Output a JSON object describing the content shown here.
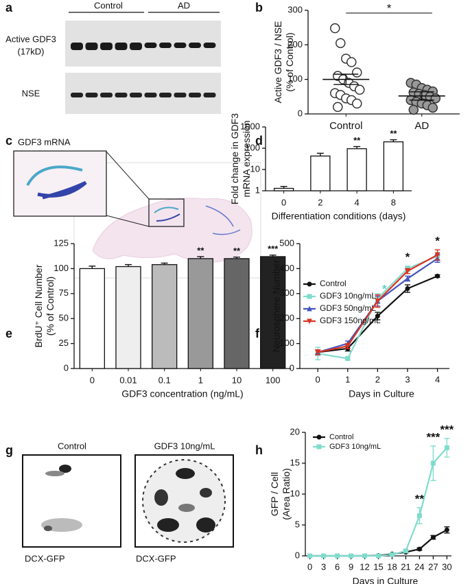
{
  "panel_a": {
    "label": "a",
    "groups": [
      "Control",
      "AD"
    ],
    "rows": [
      [
        "Active GDF3",
        "(17kD)"
      ],
      [
        "NSE"
      ]
    ]
  },
  "panel_c": {
    "label": "c",
    "title": "GDF3 mRNA"
  },
  "panel_g": {
    "label": "g",
    "conditions": [
      "Control",
      "GDF3 10ng/mL"
    ],
    "stain": [
      "DCX-GFP",
      "DCX-GFP"
    ]
  },
  "chart_data": [
    {
      "type": "dotplot",
      "label": "b",
      "categories": [
        "Control",
        "AD"
      ],
      "points": [
        [
          248,
          205,
          160,
          150,
          120,
          110,
          100,
          90,
          80,
          70,
          60,
          55,
          45,
          40,
          30,
          20
        ],
        [
          90,
          85,
          75,
          70,
          65,
          62,
          58,
          55,
          50,
          45,
          40,
          35,
          30,
          25,
          18,
          12
        ]
      ],
      "means": [
        100,
        52
      ],
      "errors": [
        15,
        12
      ],
      "colors": [
        "#ffffff",
        "#999999"
      ],
      "ylim": [
        0,
        300
      ],
      "yticks": [
        0,
        100,
        200,
        300
      ],
      "ylabel": [
        "Active GDF3 / NSE",
        "(% of Control)"
      ],
      "significance": "*"
    },
    {
      "type": "bar",
      "label": "d",
      "log": true,
      "categories": [
        "0",
        "2",
        "4",
        "8"
      ],
      "values": [
        1.3,
        43,
        95,
        200
      ],
      "errors": [
        0.3,
        15,
        25,
        50
      ],
      "color": "#ffffff",
      "significance": [
        null,
        null,
        "**",
        "**"
      ],
      "ylim": [
        1,
        1000
      ],
      "yticks": [
        1,
        10,
        100,
        1000
      ],
      "xlabel": "Differentiation conditions (days)",
      "ylabel": [
        "Fold change in GDF3",
        "mRNA expression"
      ]
    },
    {
      "type": "bar",
      "label": "e",
      "categories": [
        "0",
        "0.01",
        "0.1",
        "1",
        "10",
        "100"
      ],
      "values": [
        100,
        102,
        104,
        110,
        110,
        112
      ],
      "errors": [
        2.5,
        2,
        1.5,
        2,
        1.5,
        1.5
      ],
      "colors": [
        "#ffffff",
        "#eeeeee",
        "#bbbbbb",
        "#999999",
        "#666666",
        "#222222"
      ],
      "significance": [
        null,
        null,
        null,
        "**",
        "**",
        "***"
      ],
      "ylim": [
        0,
        125
      ],
      "yticks": [
        0,
        25,
        50,
        75,
        100,
        125
      ],
      "xlabel": "GDF3 concentration (ng/mL)",
      "ylabel": [
        "BrdU⁺ Cell Number",
        "(% of Control)"
      ]
    },
    {
      "type": "line",
      "label": "f",
      "x": [
        0,
        1,
        2,
        3,
        4
      ],
      "series": [
        {
          "name": "Control",
          "color": "#111111",
          "marker": "circle",
          "values": [
            65,
            80,
            210,
            320,
            370
          ],
          "errors": [
            10,
            10,
            15,
            15,
            5
          ]
        },
        {
          "name": "GDF3 10ng/mL",
          "color": "#7fdccc",
          "marker": "square",
          "values": [
            60,
            40,
            280,
            400,
            450
          ],
          "errors": [
            25,
            5,
            20,
            10,
            15
          ]
        },
        {
          "name": "GDF3 50ng/mL",
          "color": "#4455bb",
          "marker": "triangle",
          "values": [
            65,
            100,
            270,
            360,
            440
          ],
          "errors": [
            10,
            10,
            20,
            10,
            15
          ]
        },
        {
          "name": "GDF3 150ng/mL",
          "color": "#dd3322",
          "marker": "triangle-down",
          "values": [
            65,
            90,
            270,
            390,
            455
          ],
          "errors": [
            10,
            10,
            25,
            10,
            20
          ]
        }
      ],
      "significance": [
        null,
        null,
        "*",
        "*",
        "*"
      ],
      "significance_colors": [
        null,
        null,
        "#5fd0c0",
        "#111111",
        "#111111"
      ],
      "xlim": [
        -0.6,
        4.4
      ],
      "xticks": [
        0,
        1,
        2,
        3,
        4
      ],
      "ylim": [
        0,
        500
      ],
      "yticks": [
        0,
        100,
        200,
        300,
        400,
        500
      ],
      "xlabel": "Days in Culture",
      "ylabel": [
        "Neurosphere Number"
      ],
      "legend": "upper left"
    },
    {
      "type": "line",
      "label": "h",
      "x": [
        0,
        3,
        6,
        9,
        12,
        15,
        18,
        21,
        24,
        27,
        30
      ],
      "series": [
        {
          "name": "Control",
          "color": "#111111",
          "marker": "circle",
          "values": [
            0,
            0,
            0,
            0,
            0,
            0.05,
            0.3,
            0.6,
            1.1,
            3,
            4.2
          ],
          "errors": [
            0,
            0,
            0,
            0,
            0,
            0,
            0,
            0.1,
            0.2,
            0.3,
            0.5
          ]
        },
        {
          "name": "GDF3 10ng/mL",
          "color": "#7fdccc",
          "marker": "square",
          "values": [
            0,
            0,
            0,
            0,
            0,
            0,
            0.2,
            0.8,
            6.5,
            15,
            17.5
          ],
          "errors": [
            0,
            0,
            0,
            0,
            0,
            0,
            0.1,
            0.2,
            1.3,
            2.8,
            1.5
          ]
        }
      ],
      "significance": [
        null,
        null,
        null,
        null,
        null,
        null,
        null,
        null,
        "**",
        "***",
        "***"
      ],
      "xlim": [
        -1,
        31
      ],
      "xticks": [
        0,
        3,
        6,
        9,
        12,
        15,
        18,
        21,
        24,
        27,
        30
      ],
      "ylim": [
        0,
        20
      ],
      "yticks": [
        0,
        5,
        10,
        15,
        20
      ],
      "xlabel": "Days in Culture",
      "ylabel": [
        "GFP / Cell",
        "(Area Ratio)"
      ],
      "legend": "upper left"
    }
  ]
}
